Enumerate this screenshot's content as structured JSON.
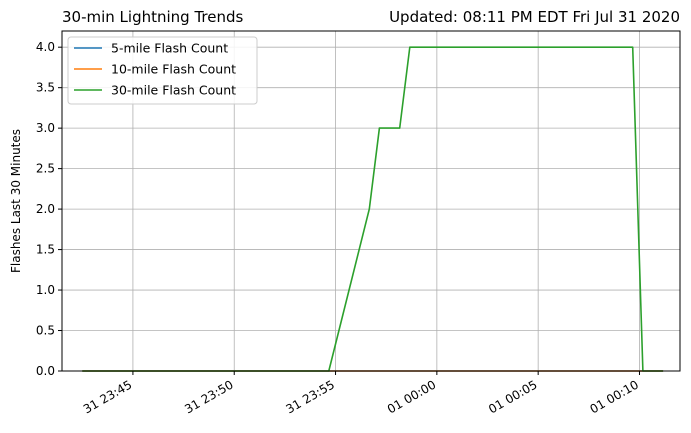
{
  "chart_data": {
    "type": "line",
    "title": "30-min Lightning Trends",
    "title_right": "Updated: 08:11 PM EDT Fri Jul 31 2020",
    "xlabel": "",
    "ylabel": "Flashes Last 30 Minutes",
    "ylim": [
      0,
      4.2
    ],
    "xlim": [
      "2020-07-31 23:41:30",
      "2020-08-01 00:12:00"
    ],
    "y_ticks": [
      0.0,
      0.5,
      1.0,
      1.5,
      2.0,
      2.5,
      3.0,
      3.5,
      4.0
    ],
    "y_tick_labels": [
      "0.0",
      "0.5",
      "1.0",
      "1.5",
      "2.0",
      "2.5",
      "3.0",
      "3.5",
      "4.0"
    ],
    "x_ticks": [
      "2020-07-31 23:45:00",
      "2020-07-31 23:50:00",
      "2020-07-31 23:55:00",
      "2020-08-01 00:00:00",
      "2020-08-01 00:05:00",
      "2020-08-01 00:10:00"
    ],
    "x_tick_labels": [
      "31 23:45",
      "31 23:50",
      "31 23:55",
      "01 00:00",
      "01 00:05",
      "01 00:10"
    ],
    "grid": true,
    "legend_position": "upper-left",
    "series": [
      {
        "name": "5-mile Flash Count",
        "color": "#1f77b4",
        "points": [
          [
            "2020-07-31 23:42:30",
            0
          ],
          [
            "2020-08-01 00:11:10",
            0
          ]
        ]
      },
      {
        "name": "10-mile Flash Count",
        "color": "#ff7f0e",
        "points": [
          [
            "2020-07-31 23:42:30",
            0
          ],
          [
            "2020-08-01 00:11:10",
            0
          ]
        ]
      },
      {
        "name": "30-mile Flash Count",
        "color": "#2ca02c",
        "points": [
          [
            "2020-07-31 23:42:30",
            0
          ],
          [
            "2020-07-31 23:54:40",
            0
          ],
          [
            "2020-07-31 23:56:40",
            2
          ],
          [
            "2020-07-31 23:57:10",
            3
          ],
          [
            "2020-07-31 23:58:10",
            3
          ],
          [
            "2020-07-31 23:58:40",
            4
          ],
          [
            "2020-08-01 00:09:40",
            4
          ],
          [
            "2020-08-01 00:10:10",
            0
          ],
          [
            "2020-08-01 00:11:10",
            0
          ]
        ]
      }
    ]
  }
}
